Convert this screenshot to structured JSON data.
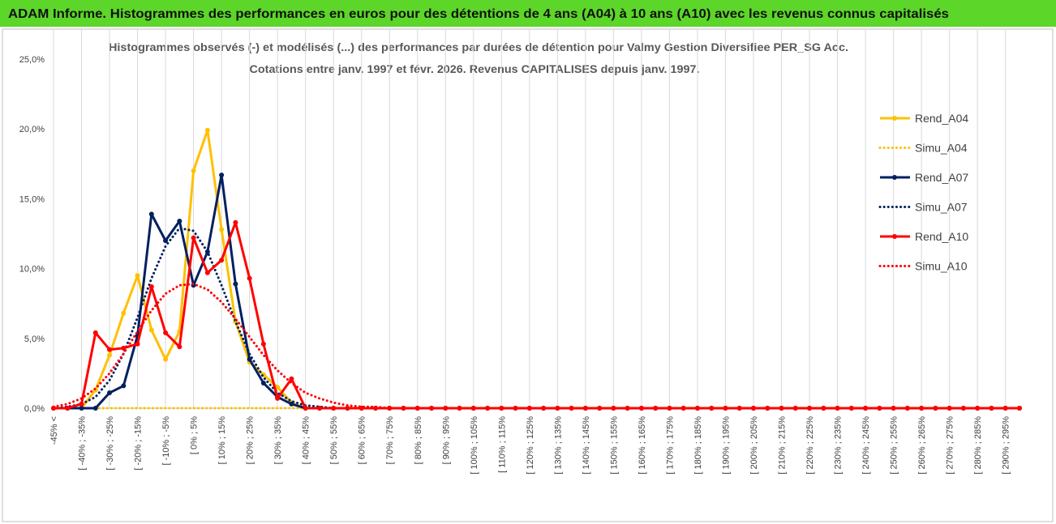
{
  "header": {
    "title": "ADAM Informe. Histogrammes des performances en euros pour des détentions de 4 ans (A04) à 10 ans (A10) avec les revenus connus capitalisés"
  },
  "chart_data": {
    "type": "line",
    "title": "Histogrammes observés (-) et modélisés (...) des performances par durées de détention pour Valmy Gestion Diversifiee PER_SG Acc.",
    "subtitle": "Cotations entre janv. 1997 et févr. 2026. Revenus CAPITALISES depuis janv. 1997.",
    "categories": [
      "-45% <",
      null,
      "[ -40% ; -35%",
      null,
      "[ -30% ; -25%",
      null,
      "[ -20% ; -15%",
      null,
      "[ -10% ; -5%",
      null,
      "[ 0% ; 5%",
      null,
      "[ 10% ; 15%",
      null,
      "[ 20% ; 25%",
      null,
      "[ 30% ; 35%",
      null,
      "[ 40% ; 45%",
      null,
      "[ 50% ; 55%",
      null,
      "[ 60% ; 65%",
      null,
      "[ 70% ; 75%",
      null,
      "[ 80% ; 85%",
      null,
      "[ 90% ; 95%",
      null,
      "[ 100% ; 105%",
      null,
      "[ 110% ; 115%",
      null,
      "[ 120% ; 125%",
      null,
      "[ 130% ; 135%",
      null,
      "[ 140% ; 145%",
      null,
      "[ 150% ; 155%",
      null,
      "[ 160% ; 165%",
      null,
      "[ 170% ; 175%",
      null,
      "[ 180% ; 185%",
      null,
      "[ 190% ; 195%",
      null,
      "[ 200% ; 205%",
      null,
      "[ 210% ; 215%",
      null,
      "[ 220% ; 225%",
      null,
      "[ 230% ; 235%",
      null,
      "[ 240% ; 245%",
      null,
      "[ 250% ; 255%",
      null,
      "[ 260% ; 265%",
      null,
      "[ 270% ; 275%",
      null,
      "[ 280% ; 285%",
      null,
      "[ 290% ; 295%",
      null
    ],
    "series": [
      {
        "name": "Rend_A04",
        "color": "#ffc000",
        "dashed": false,
        "marker": true,
        "values": [
          0,
          0,
          0,
          1.3,
          3.8,
          6.8,
          9.5,
          5.6,
          3.5,
          5.5,
          17.0,
          19.9,
          12.8,
          6.2,
          3.3,
          2.4,
          1.5,
          0.4,
          0,
          0,
          0,
          0,
          0,
          0,
          0,
          0,
          0,
          0,
          0,
          0,
          0,
          0,
          0,
          0,
          0,
          0,
          0,
          0,
          0,
          0,
          0,
          0,
          0,
          0,
          0,
          0,
          0,
          0,
          0,
          0,
          0,
          0,
          0,
          0,
          0,
          0,
          0,
          0,
          0,
          0,
          0,
          0,
          0,
          0,
          0,
          0,
          0,
          0,
          0,
          0
        ]
      },
      {
        "name": "Simu_A04",
        "color": "#ffc000",
        "dashed": true,
        "marker": false,
        "values": [
          0,
          0,
          0,
          0,
          0,
          0,
          0,
          0,
          0,
          0,
          0,
          0,
          0,
          0,
          0,
          0,
          0,
          0,
          0,
          0,
          0,
          0,
          0,
          0,
          0,
          0,
          0,
          0,
          0,
          0,
          0,
          0,
          0,
          0,
          0,
          0,
          0,
          0,
          0,
          0,
          0,
          0,
          0,
          0,
          0,
          0,
          0,
          0,
          0,
          0,
          0,
          0,
          0,
          0,
          0,
          0,
          0,
          0,
          0,
          0,
          0,
          0,
          0,
          0,
          0,
          0,
          0,
          0,
          0,
          0
        ]
      },
      {
        "name": "Rend_A07",
        "color": "#002060",
        "dashed": false,
        "marker": true,
        "values": [
          0,
          0,
          0,
          0,
          1.1,
          1.6,
          5.2,
          13.9,
          12.0,
          13.4,
          8.8,
          11.2,
          16.7,
          8.9,
          3.5,
          1.8,
          0.8,
          0.3,
          0,
          0,
          0,
          0,
          0,
          0,
          0,
          0,
          0,
          0,
          0,
          0,
          0,
          0,
          0,
          0,
          0,
          0,
          0,
          0,
          0,
          0,
          0,
          0,
          0,
          0,
          0,
          0,
          0,
          0,
          0,
          0,
          0,
          0,
          0,
          0,
          0,
          0,
          0,
          0,
          0,
          0,
          0,
          0,
          0,
          0,
          0,
          0,
          0,
          0,
          0,
          0
        ]
      },
      {
        "name": "Simu_A07",
        "color": "#002060",
        "dashed": true,
        "marker": false,
        "values": [
          0,
          0.1,
          0.3,
          0.8,
          2.0,
          3.9,
          6.5,
          9.3,
          11.6,
          12.9,
          12.7,
          11.2,
          8.8,
          6.2,
          3.9,
          2.2,
          1.1,
          0.5,
          0.2,
          0.1,
          0,
          0,
          0,
          0,
          0,
          0,
          0,
          0,
          0,
          0,
          0,
          0,
          0,
          0,
          0,
          0,
          0,
          0,
          0,
          0,
          0,
          0,
          0,
          0,
          0,
          0,
          0,
          0,
          0,
          0,
          0,
          0,
          0,
          0,
          0,
          0,
          0,
          0,
          0,
          0,
          0,
          0,
          0,
          0,
          0,
          0,
          0,
          0,
          0,
          0
        ]
      },
      {
        "name": "Rend_A10",
        "color": "#ff0000",
        "dashed": false,
        "marker": true,
        "values": [
          0,
          0,
          0.3,
          5.4,
          4.2,
          4.3,
          4.6,
          8.7,
          5.4,
          4.4,
          12.2,
          9.7,
          10.6,
          13.3,
          9.3,
          4.6,
          0.7,
          2.1,
          0,
          0,
          0,
          0,
          0,
          0,
          0,
          0,
          0,
          0,
          0,
          0,
          0,
          0,
          0,
          0,
          0,
          0,
          0,
          0,
          0,
          0,
          0,
          0,
          0,
          0,
          0,
          0,
          0,
          0,
          0,
          0,
          0,
          0,
          0,
          0,
          0,
          0,
          0,
          0,
          0,
          0,
          0,
          0,
          0,
          0,
          0,
          0,
          0,
          0,
          0,
          0
        ]
      },
      {
        "name": "Simu_A10",
        "color": "#ff0000",
        "dashed": true,
        "marker": false,
        "values": [
          0.1,
          0.3,
          0.7,
          1.4,
          2.5,
          3.9,
          5.5,
          7.0,
          8.2,
          8.8,
          8.9,
          8.5,
          7.6,
          6.4,
          5.1,
          3.8,
          2.7,
          1.8,
          1.1,
          0.7,
          0.4,
          0.2,
          0.1,
          0.1,
          0,
          0,
          0,
          0,
          0,
          0,
          0,
          0,
          0,
          0,
          0,
          0,
          0,
          0,
          0,
          0,
          0,
          0,
          0,
          0,
          0,
          0,
          0,
          0,
          0,
          0,
          0,
          0,
          0,
          0,
          0,
          0,
          0,
          0,
          0,
          0,
          0,
          0,
          0,
          0,
          0,
          0,
          0,
          0,
          0,
          0
        ]
      }
    ],
    "ylim": [
      0,
      25
    ],
    "yticks": [
      {
        "value": 0,
        "label": "0,0%"
      },
      {
        "value": 5,
        "label": "5,0%"
      },
      {
        "value": 10,
        "label": "10,0%"
      },
      {
        "value": 15,
        "label": "15,0%"
      },
      {
        "value": 20,
        "label": "20,0%"
      },
      {
        "value": 25,
        "label": "25,0%"
      }
    ],
    "grid": true,
    "legend": "right"
  }
}
